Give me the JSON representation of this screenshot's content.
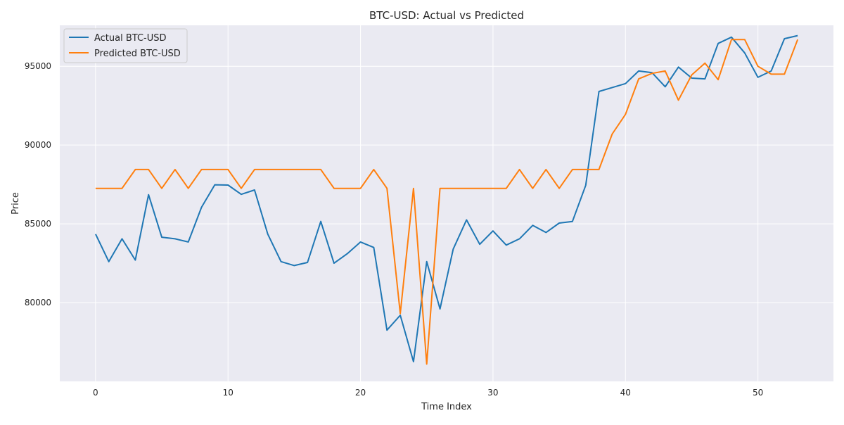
{
  "chart_data": {
    "type": "line",
    "title": "BTC-USD: Actual vs Predicted",
    "xlabel": "Time Index",
    "ylabel": "Price",
    "xlim": [
      -2.7,
      55.7
    ],
    "ylim": [
      75000,
      97600
    ],
    "xticks": [
      0,
      10,
      20,
      30,
      40,
      50
    ],
    "yticks": [
      80000,
      85000,
      90000,
      95000
    ],
    "grid": true,
    "legend_position": "top-left",
    "x": [
      0,
      1,
      2,
      3,
      4,
      5,
      6,
      7,
      8,
      9,
      10,
      11,
      12,
      13,
      14,
      15,
      16,
      17,
      18,
      19,
      20,
      21,
      22,
      23,
      24,
      25,
      26,
      27,
      28,
      29,
      30,
      31,
      32,
      33,
      34,
      35,
      36,
      37,
      38,
      39,
      40,
      41,
      42,
      43,
      44,
      45,
      46,
      47,
      48,
      49,
      50,
      51,
      52,
      53
    ],
    "series": [
      {
        "name": "Actual BTC-USD",
        "color": "#1f77b4",
        "values": [
          84350,
          82600,
          84050,
          82700,
          86850,
          84150,
          84050,
          83850,
          86050,
          87480,
          87460,
          86870,
          87150,
          84350,
          82600,
          82350,
          82550,
          85150,
          82500,
          83100,
          83850,
          83500,
          78250,
          79200,
          76250,
          82600,
          79600,
          83400,
          85250,
          83700,
          84550,
          83650,
          84050,
          84900,
          84450,
          85050,
          85150,
          87450,
          93400,
          93650,
          93900,
          94700,
          94600,
          93700,
          94950,
          94250,
          94200,
          96450,
          96850,
          95850,
          94300,
          94700,
          96750,
          96950
        ]
      },
      {
        "name": "Predicted BTC-USD",
        "color": "#ff7f0e",
        "values": [
          87250,
          87250,
          87250,
          88450,
          88450,
          87250,
          88450,
          87250,
          88450,
          88450,
          88450,
          87250,
          88450,
          88450,
          88450,
          88450,
          88450,
          88450,
          87250,
          87250,
          87250,
          88450,
          87250,
          79300,
          87250,
          76100,
          87250,
          87250,
          87250,
          87250,
          87250,
          87250,
          88450,
          87250,
          88450,
          87250,
          88450,
          88450,
          88450,
          90700,
          91950,
          94200,
          94550,
          94700,
          92850,
          94450,
          95200,
          94150,
          96700,
          96700,
          95000,
          94500,
          94500,
          96700
        ]
      }
    ]
  },
  "colors": {
    "plot_background": "#eaeaf2",
    "grid": "#ffffff",
    "page_background": "#ffffff"
  }
}
